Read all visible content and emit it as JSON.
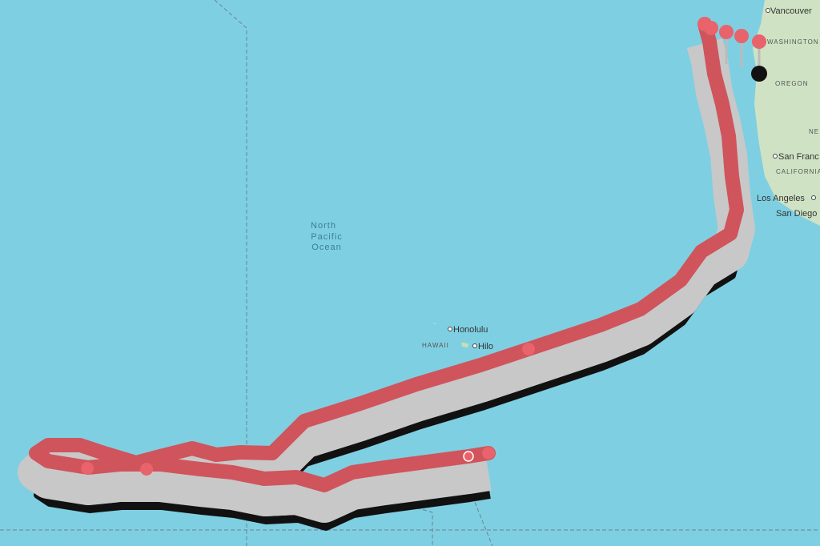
{
  "map": {
    "ocean_label": [
      "North",
      "Pacific",
      "Ocean"
    ],
    "places": [
      {
        "label": "Vancouver",
        "kind": "city"
      },
      {
        "label": "WASHINGTON",
        "kind": "region"
      },
      {
        "label": "OREGON",
        "kind": "region"
      },
      {
        "label": "NE",
        "kind": "region"
      },
      {
        "label": "San Franc",
        "kind": "city"
      },
      {
        "label": "CALIFORNIA",
        "kind": "region"
      },
      {
        "label": "Los Angeles",
        "kind": "city"
      },
      {
        "label": "San Diego",
        "kind": "city"
      },
      {
        "label": "Honolulu",
        "kind": "city"
      },
      {
        "label": "HAWAII",
        "kind": "region"
      },
      {
        "label": "Hilo",
        "kind": "city"
      }
    ]
  }
}
